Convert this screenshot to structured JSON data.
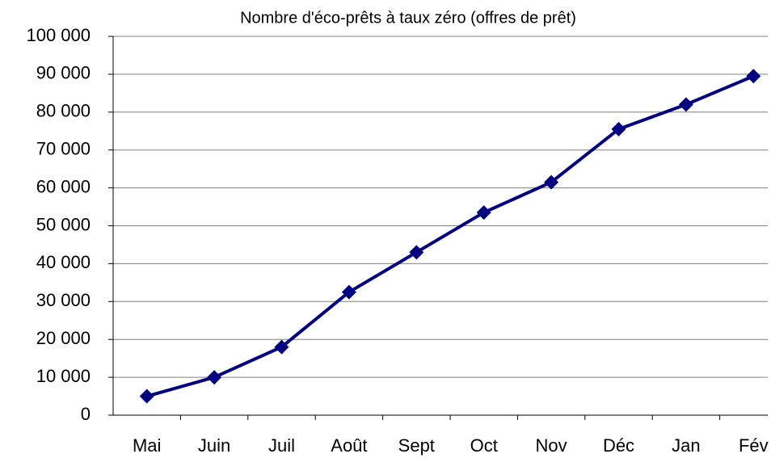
{
  "chart_data": {
    "type": "line",
    "title": "Nombre d'éco-prêts à taux zéro (offres de prêt)",
    "categories": [
      "Mai",
      "Juin",
      "Juil",
      "Août",
      "Sept",
      "Oct",
      "Nov",
      "Déc",
      "Jan",
      "Fév"
    ],
    "series": [
      {
        "color": "#000080",
        "values": [
          5000,
          10000,
          18000,
          32500,
          43000,
          53500,
          61500,
          75500,
          82000,
          89500
        ]
      }
    ],
    "ylim": [
      0,
      100000
    ],
    "yticks": [
      0,
      {
        "value": 10000,
        "label": "10 000"
      },
      {
        "value": 20000,
        "label": "20 000"
      },
      {
        "value": 30000,
        "label": "30 000"
      },
      {
        "value": 40000,
        "label": "40 000"
      },
      {
        "value": 50000,
        "label": "50 000"
      },
      {
        "value": 60000,
        "label": "60 000"
      },
      {
        "value": 70000,
        "label": "70 000"
      },
      {
        "value": 80000,
        "label": "80 000"
      },
      {
        "value": 90000,
        "label": "90 000"
      },
      {
        "value": 100000,
        "label": "100 000"
      }
    ],
    "grid": true
  }
}
